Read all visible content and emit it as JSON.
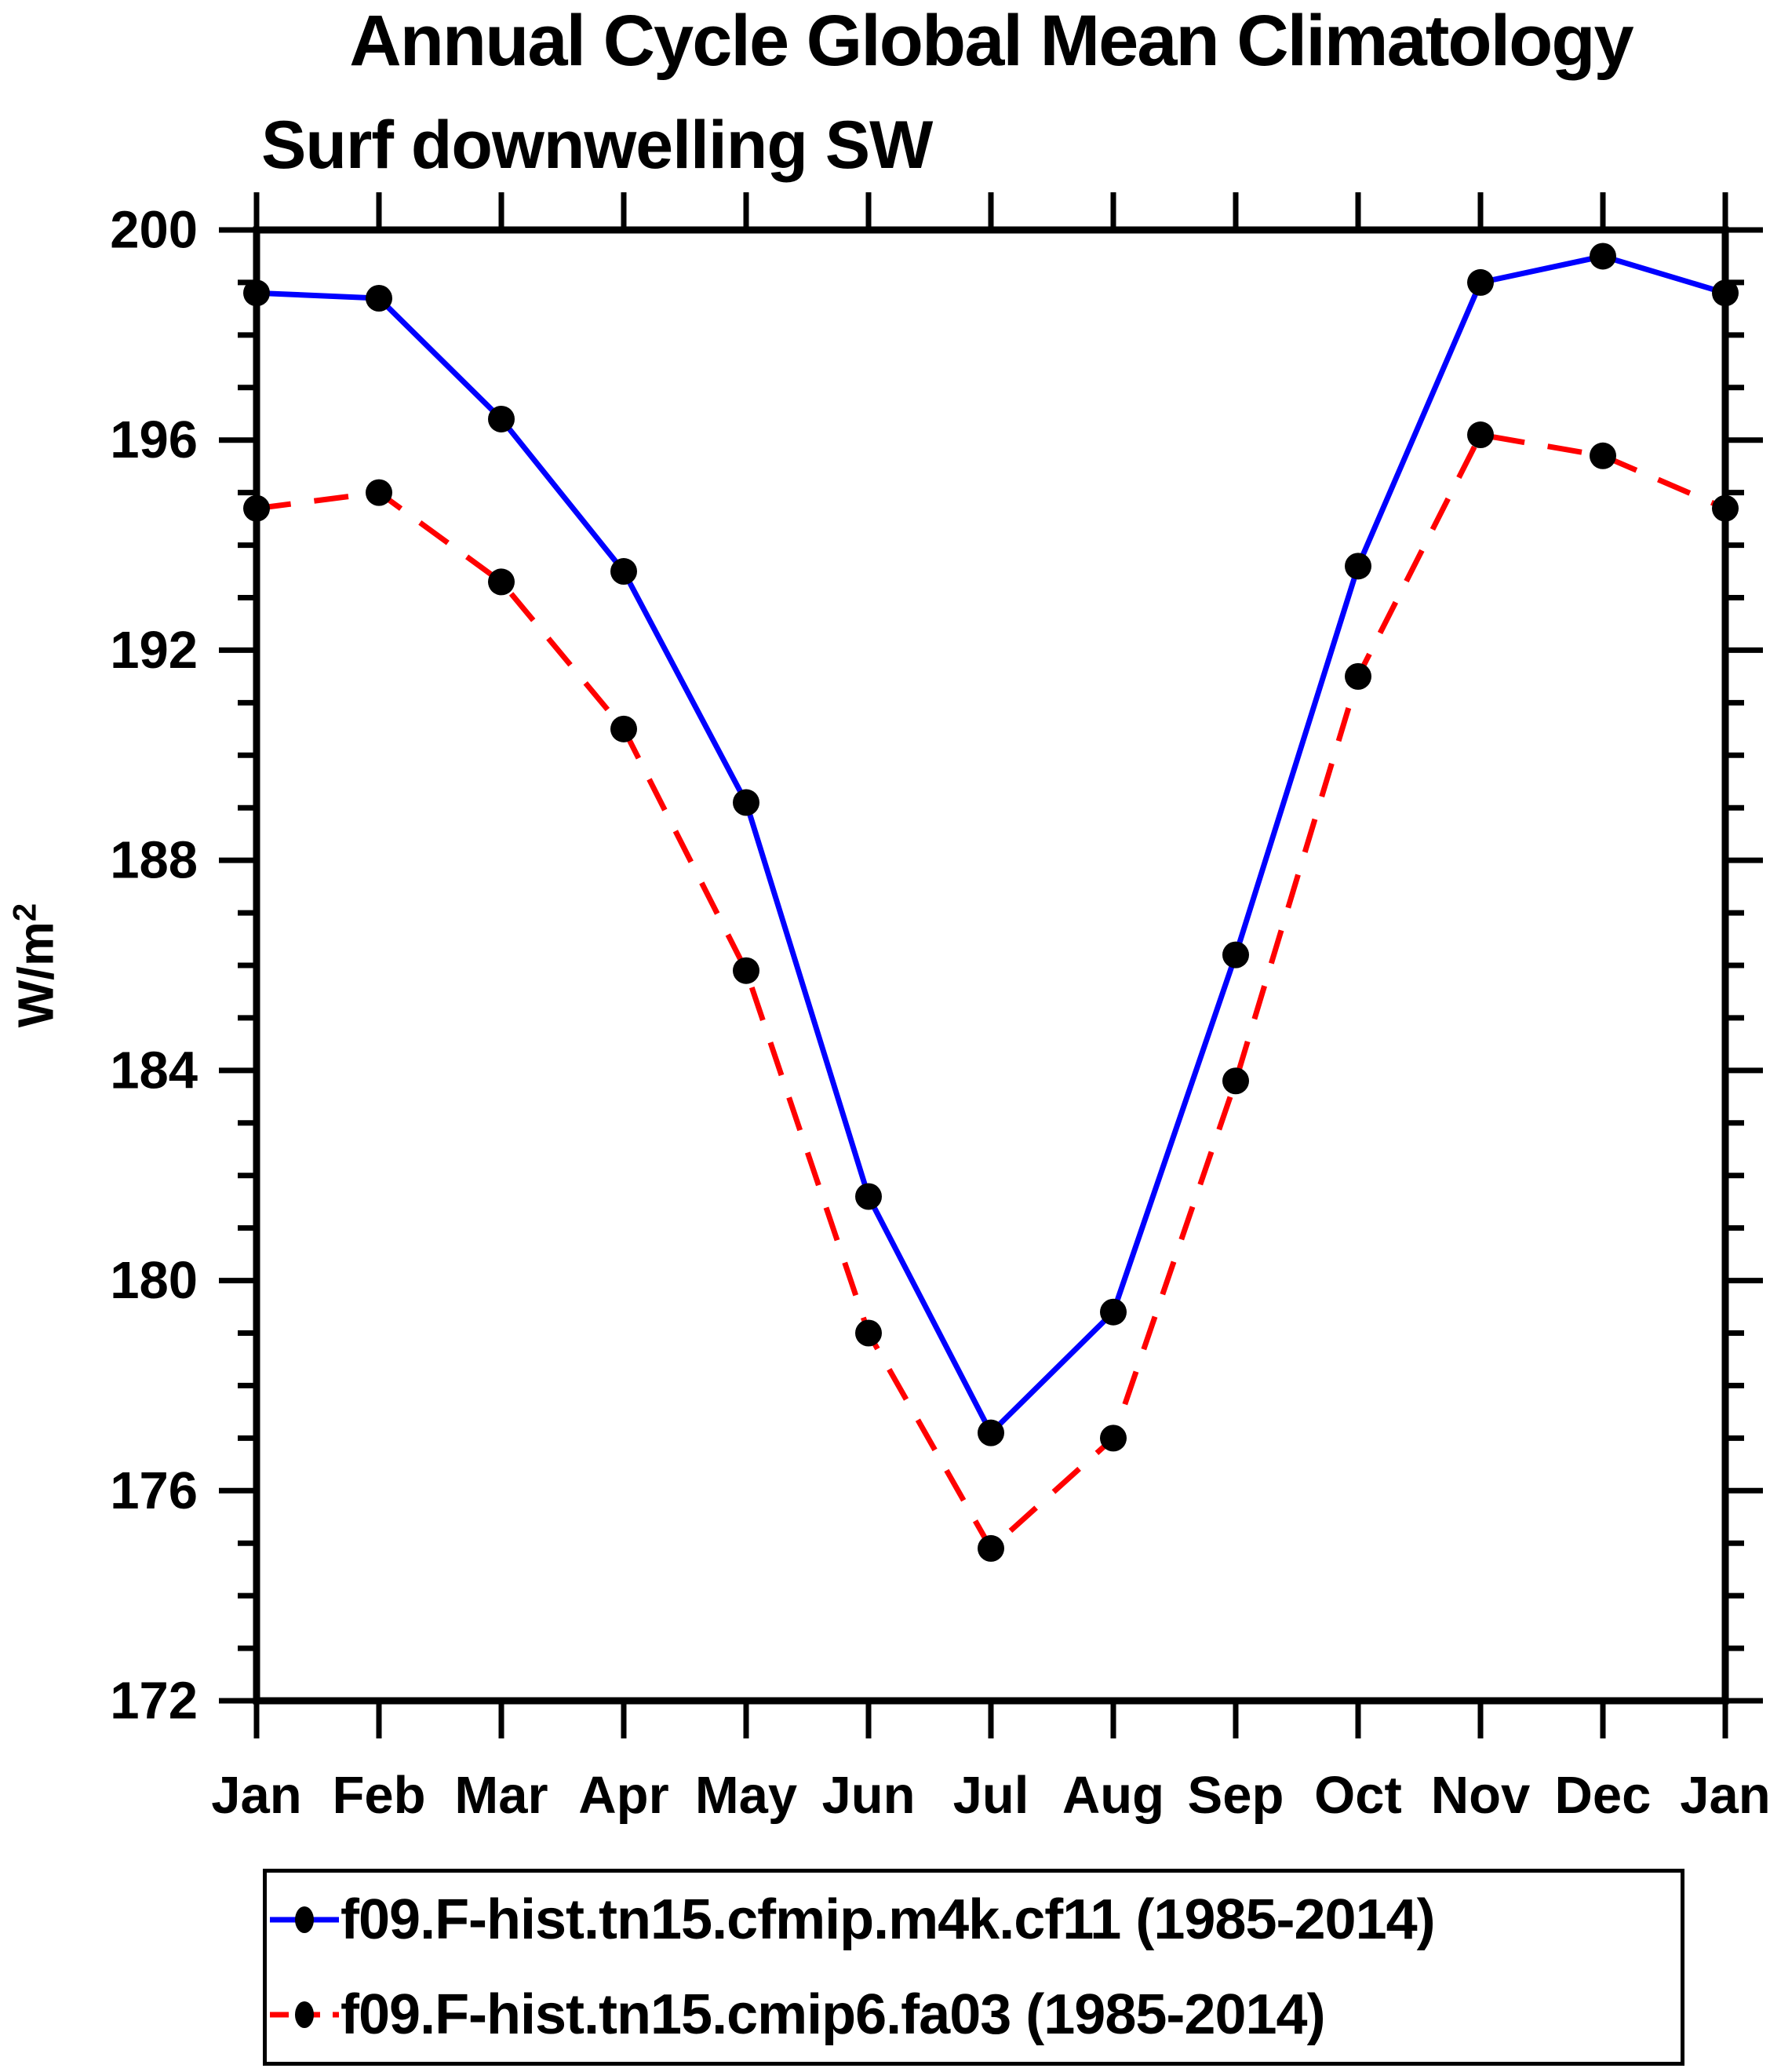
{
  "title": "Annual Cycle Global Mean Climatology",
  "subtitle": "Surf downwelling SW",
  "y_axis": {
    "unit_base": "W/m",
    "unit_exponent": "2",
    "tick_labels": [
      "200",
      "196",
      "192",
      "188",
      "184",
      "180",
      "176",
      "172"
    ],
    "min": 172,
    "max": 200,
    "major_step": 4,
    "minor_step": 1
  },
  "x_axis": {
    "tick_labels": [
      "Jan",
      "Feb",
      "Mar",
      "Apr",
      "May",
      "Jun",
      "Jul",
      "Aug",
      "Sep",
      "Oct",
      "Nov",
      "Dec",
      "Jan"
    ]
  },
  "colors": {
    "series1": "#0000ff",
    "series2": "#ff0000",
    "marker": "#000000",
    "axis": "#000000"
  },
  "legend": {
    "entries": [
      {
        "label": "f09.F-hist.tn15.cfmip.m4k.cf11 (1985-2014)",
        "color": "#0000ff",
        "style": "solid"
      },
      {
        "label": "f09.F-hist.tn15.cmip6.fa03 (1985-2014)",
        "color": "#ff0000",
        "style": "dashed"
      }
    ]
  },
  "chart_data": {
    "type": "line",
    "title": "Annual Cycle Global Mean Climatology",
    "subtitle": "Surf downwelling SW",
    "ylabel": "W/m2",
    "ylim": [
      172,
      200
    ],
    "y_major_step": 4,
    "y_minor_step": 1,
    "grid": false,
    "legend_position": "bottom",
    "x": [
      "Jan",
      "Feb",
      "Mar",
      "Apr",
      "May",
      "Jun",
      "Jul",
      "Aug",
      "Sep",
      "Oct",
      "Nov",
      "Dec",
      "Jan"
    ],
    "series": [
      {
        "name": "f09.F-hist.tn15.cfmip.m4k.cf11 (1985-2014)",
        "color": "#0000ff",
        "line_style": "solid",
        "marker": "circle",
        "marker_color": "#000000",
        "values": [
          198.8,
          198.7,
          196.4,
          193.5,
          189.1,
          181.6,
          177.1,
          179.4,
          186.2,
          193.6,
          199.0,
          199.5,
          198.8
        ]
      },
      {
        "name": "f09.F-hist.tn15.cmip6.fa03 (1985-2014)",
        "color": "#ff0000",
        "line_style": "dashed",
        "marker": "circle",
        "marker_color": "#000000",
        "values": [
          194.7,
          195.0,
          193.3,
          190.5,
          185.9,
          179.0,
          174.9,
          177.0,
          183.8,
          191.5,
          196.1,
          195.7,
          194.7
        ]
      }
    ]
  }
}
